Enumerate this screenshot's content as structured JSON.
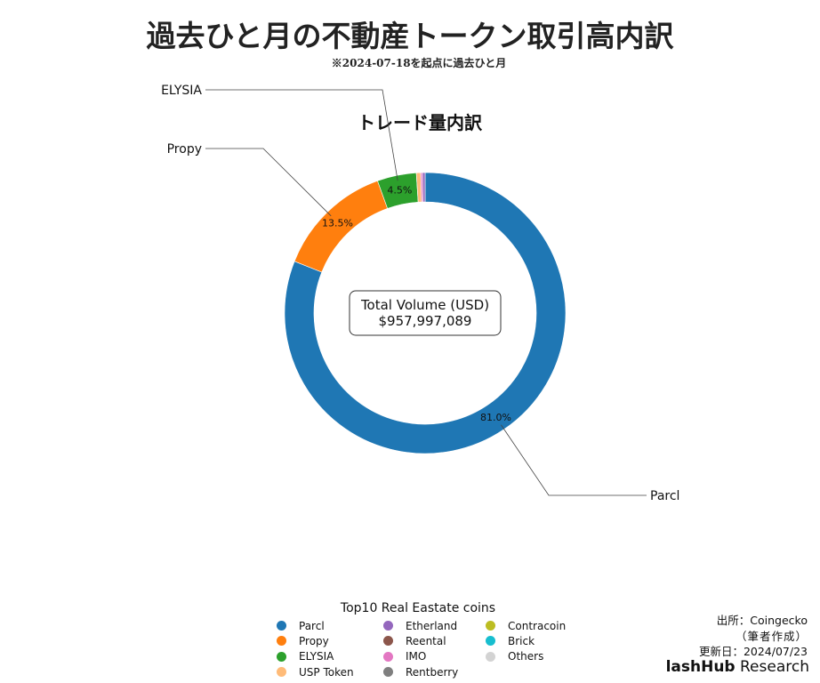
{
  "header": {
    "title": "過去ひと月の不動産トークン取引高内訳",
    "subtitle": "※2024-07-18を起点に過去ひと月"
  },
  "chart_data": {
    "type": "pie",
    "style": "donut",
    "title": "トレード量内訳",
    "center_label_line1": "Total Volume (USD)",
    "center_label_line2": "$957,997,089",
    "total_usd": 957997089,
    "slices": [
      {
        "name": "Parcl",
        "percent": 81.0,
        "label": "81.0%",
        "callout": "Parcl",
        "color": "#1f77b4"
      },
      {
        "name": "Propy",
        "percent": 13.5,
        "label": "13.5%",
        "callout": "Propy",
        "color": "#ff7f0e"
      },
      {
        "name": "ELYSIA",
        "percent": 4.5,
        "label": "4.5%",
        "callout": "ELYSIA",
        "color": "#2ca02c"
      },
      {
        "name": "USP Token",
        "percent": 0.5,
        "label": "",
        "callout": "",
        "color": "#ffbb78"
      },
      {
        "name": "IMO",
        "percent": 0.2,
        "label": "",
        "callout": "",
        "color": "#e377c2"
      },
      {
        "name": "Etherland",
        "percent": 0.3,
        "label": "",
        "callout": "",
        "color": "#9467bd"
      }
    ],
    "legend": {
      "title": "Top10 Real Eastate coins",
      "placement": "bottom-center",
      "items": [
        {
          "label": "Parcl",
          "color": "#1f77b4"
        },
        {
          "label": "Propy",
          "color": "#ff7f0e"
        },
        {
          "label": "ELYSIA",
          "color": "#2ca02c"
        },
        {
          "label": "USP Token",
          "color": "#ffbb78"
        },
        {
          "label": "Etherland",
          "color": "#9467bd"
        },
        {
          "label": "Reental",
          "color": "#8c564b"
        },
        {
          "label": "IMO",
          "color": "#e377c2"
        },
        {
          "label": "Rentberry",
          "color": "#7f7f7f"
        },
        {
          "label": "Contracoin",
          "color": "#bcbd22"
        },
        {
          "label": "Brick",
          "color": "#17becf"
        },
        {
          "label": "Others",
          "color": "#d3d3d3"
        }
      ]
    }
  },
  "footer": {
    "source_line1": "出所：Coingecko",
    "source_line2": "（筆者作成）",
    "updated": "更新日：2024/07/23",
    "logo_bold": "lashHub",
    "logo_rest": " Research"
  }
}
